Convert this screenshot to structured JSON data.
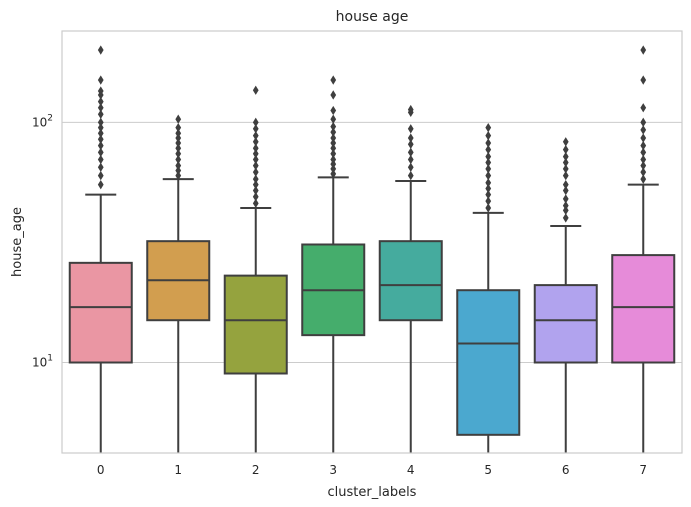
{
  "chart_data": {
    "type": "box",
    "title": "house age",
    "xlabel": "cluster_labels",
    "ylabel": "house_age",
    "y_scale": "log",
    "ylim": [
      4.2,
      240
    ],
    "y_ticks": [
      {
        "value": 10,
        "base": "10",
        "exp": "1"
      },
      {
        "value": 100,
        "base": "10",
        "exp": "2"
      }
    ],
    "grid": "horizontal",
    "categories": [
      "0",
      "1",
      "2",
      "3",
      "4",
      "5",
      "6",
      "7"
    ],
    "boxes": [
      {
        "category": "0",
        "color": "#ea96a3",
        "whisker_low": 4.2,
        "q1": 10,
        "median": 17,
        "q3": 26,
        "whisker_high": 50,
        "outliers": [
          55,
          60,
          65,
          70,
          75,
          80,
          85,
          90,
          95,
          100,
          108,
          115,
          122,
          130,
          135,
          150,
          200
        ]
      },
      {
        "category": "1",
        "color": "#d29e4f",
        "whisker_low": 4.2,
        "q1": 15,
        "median": 22,
        "q3": 32,
        "whisker_high": 58,
        "outliers": [
          60,
          63,
          66,
          70,
          74,
          78,
          82,
          86,
          90,
          95,
          103
        ]
      },
      {
        "category": "2",
        "color": "#95a33e",
        "whisker_low": 4.2,
        "q1": 9,
        "median": 15,
        "q3": 23,
        "whisker_high": 44,
        "outliers": [
          46,
          49,
          52,
          55,
          58,
          62,
          66,
          70,
          74,
          78,
          83,
          88,
          94,
          100,
          136
        ]
      },
      {
        "category": "3",
        "color": "#45ad6c",
        "whisker_low": 4.2,
        "q1": 13,
        "median": 20,
        "q3": 31,
        "whisker_high": 59,
        "outliers": [
          61,
          64,
          67,
          70,
          74,
          78,
          82,
          86,
          91,
          96,
          103,
          112,
          130,
          150
        ]
      },
      {
        "category": "4",
        "color": "#45ab9e",
        "whisker_low": 4.2,
        "q1": 15,
        "median": 21,
        "q3": 32,
        "whisker_high": 57,
        "outliers": [
          60,
          65,
          70,
          75,
          81,
          86,
          94,
          110,
          113
        ]
      },
      {
        "category": "5",
        "color": "#4ba8cf",
        "whisker_low": 4.2,
        "q1": 5,
        "median": 12,
        "q3": 20,
        "whisker_high": 42,
        "outliers": [
          44,
          47,
          50,
          53,
          56,
          60,
          64,
          68,
          72,
          77,
          82,
          88,
          95
        ]
      },
      {
        "category": "6",
        "color": "#b1a3ee",
        "whisker_low": 4.2,
        "q1": 10,
        "median": 15,
        "q3": 21,
        "whisker_high": 37,
        "outliers": [
          40,
          43,
          45,
          48,
          52,
          55,
          60,
          64,
          68,
          72,
          77,
          83
        ]
      },
      {
        "category": "7",
        "color": "#e68bd9",
        "whisker_low": 4.2,
        "q1": 10,
        "median": 17,
        "q3": 28,
        "whisker_high": 55,
        "outliers": [
          58,
          62,
          66,
          70,
          75,
          80,
          86,
          93,
          100,
          115,
          150,
          200
        ]
      }
    ]
  }
}
